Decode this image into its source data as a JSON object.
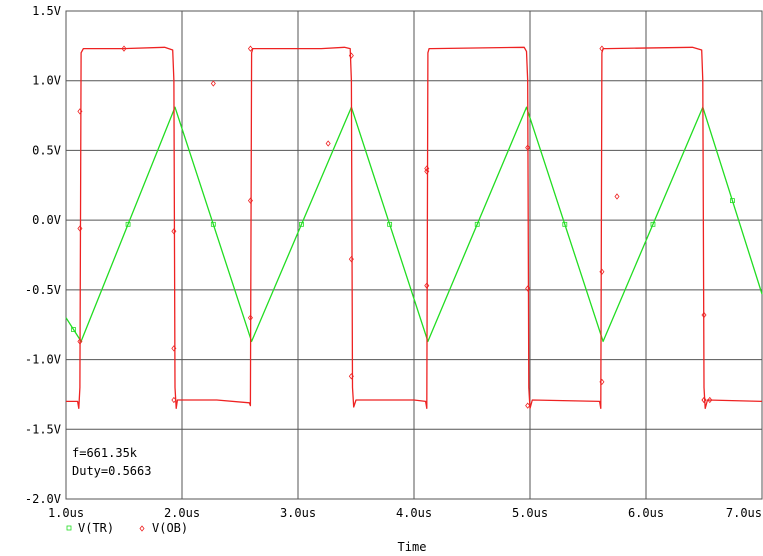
{
  "chart_data": {
    "type": "line",
    "xlabel": "Time",
    "ylabel": "",
    "xlim": [
      1.0,
      7.0
    ],
    "ylim": [
      -2.0,
      1.5
    ],
    "x_unit": "us",
    "x_ticks": [
      1.0,
      2.0,
      3.0,
      4.0,
      5.0,
      6.0,
      7.0
    ],
    "x_tick_labels": [
      "1.0us",
      "2.0us",
      "3.0us",
      "4.0us",
      "5.0us",
      "6.0us",
      "7.0us"
    ],
    "y_ticks": [
      1.5,
      1.0,
      0.5,
      0.0,
      -0.5,
      -1.0,
      -1.5,
      -2.0
    ],
    "y_tick_labels": [
      "1.5V",
      "1.0V",
      "0.5V",
      "0.0V",
      "-0.5V",
      "-1.0V",
      "-1.5V",
      "-2.0V"
    ],
    "grid": true,
    "legend_position": "bottom-left",
    "annotations": [
      "f=661.35k",
      "Duty=0.5663"
    ],
    "series": [
      {
        "name": "V(TR)",
        "color": "#22dd22",
        "marker": "square",
        "x": [
          1.0,
          1.13,
          1.94,
          2.6,
          3.46,
          4.12,
          4.97,
          5.63,
          6.49,
          7.0
        ],
        "y": [
          -0.7,
          -0.87,
          0.81,
          -0.87,
          0.81,
          -0.87,
          0.81,
          -0.87,
          0.81,
          -0.53
        ]
      },
      {
        "name": "V(OB)",
        "color": "#ee2222",
        "marker": "diamond",
        "x": [
          1.0,
          1.1,
          1.11,
          1.12,
          1.13,
          1.15,
          1.5,
          1.85,
          1.92,
          1.93,
          1.94,
          1.95,
          1.96,
          2.3,
          2.58,
          2.59,
          2.6,
          2.61,
          2.63,
          3.2,
          3.4,
          3.45,
          3.46,
          3.47,
          3.48,
          3.5,
          4.0,
          4.1,
          4.11,
          4.12,
          4.13,
          4.15,
          4.95,
          4.97,
          4.98,
          4.99,
          5.0,
          5.02,
          5.6,
          5.61,
          5.62,
          5.63,
          5.66,
          6.4,
          6.48,
          6.49,
          6.5,
          6.51,
          6.53,
          7.0
        ],
        "y": [
          -1.3,
          -1.3,
          -1.35,
          -1.2,
          1.2,
          1.23,
          1.23,
          1.24,
          1.22,
          1.0,
          -1.2,
          -1.35,
          -1.29,
          -1.29,
          -1.31,
          -1.33,
          1.2,
          1.23,
          1.23,
          1.23,
          1.24,
          1.23,
          1.0,
          -1.2,
          -1.34,
          -1.29,
          -1.29,
          -1.3,
          -1.35,
          1.2,
          1.23,
          1.23,
          1.24,
          1.21,
          1.0,
          -1.2,
          -1.35,
          -1.29,
          -1.3,
          -1.35,
          1.2,
          1.23,
          1.23,
          1.24,
          1.22,
          1.0,
          -1.2,
          -1.35,
          -1.29,
          -1.3
        ],
        "marker_x": [
          1.12,
          1.12,
          1.12,
          1.5,
          1.93,
          1.93,
          1.93,
          2.27,
          2.59,
          2.59,
          2.59,
          3.26,
          3.46,
          3.46,
          3.46,
          4.11,
          4.11,
          4.11,
          4.98,
          4.98,
          4.98,
          5.62,
          5.62,
          5.62,
          5.75,
          6.5,
          6.5,
          6.5,
          6.55
        ]
      }
    ]
  }
}
